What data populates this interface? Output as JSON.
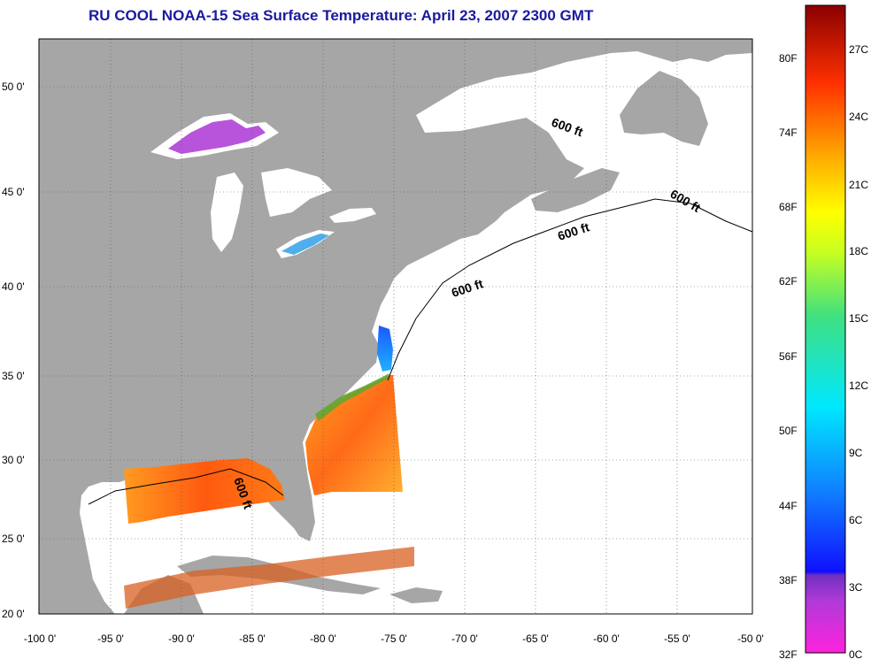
{
  "title": "RU COOL  NOAA-15  Sea Surface Temperature:  April 23, 2007 2300 GMT",
  "map": {
    "lat_labels": [
      "50 0'",
      "45 0'",
      "40 0'",
      "35 0'",
      "30 0'",
      "25 0'",
      "20 0'"
    ],
    "lon_labels": [
      "-100 0'",
      "-95 0'",
      "-90 0'",
      "-85 0'",
      "-80 0'",
      "-75 0'",
      "-70 0'",
      "-65 0'",
      "-60 0'",
      "-55 0'",
      "-50 0'"
    ],
    "isobath_label": "600 ft",
    "land_color": "#a6a6a6",
    "water_color": "#ffffff",
    "grid": true
  },
  "colorbar": {
    "fahrenheit": [
      "80F",
      "74F",
      "68F",
      "62F",
      "56F",
      "50F",
      "44F",
      "38F",
      "32F"
    ],
    "celsius": [
      "27C",
      "24C",
      "21C",
      "18C",
      "15C",
      "12C",
      "9C",
      "6C",
      "3C",
      "0C"
    ]
  }
}
